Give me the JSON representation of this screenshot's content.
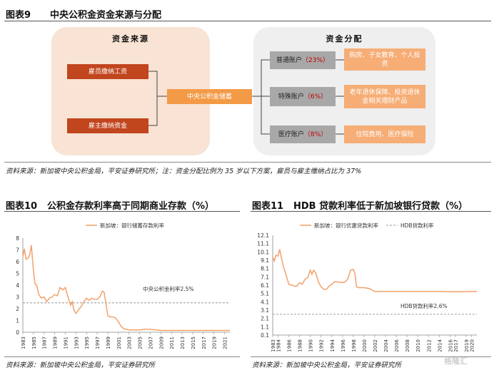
{
  "fig9": {
    "label": "图表9",
    "title": "中央公积金资金来源与分配",
    "sources_title": "资金来源",
    "sources": [
      "雇员缴纳工资",
      "雇主缴纳资金"
    ],
    "center": "中央公积金储蓄",
    "dist_title": "资金分配",
    "accounts": [
      {
        "name": "普通账户",
        "pct": "（23%）",
        "use": "购房、子女教育、个人投资"
      },
      {
        "name": "特殊账户",
        "pct": "（6%）",
        "use": "老年退休保障、投资退休金相关理财产品"
      },
      {
        "name": "医疗账户",
        "pct": "（8%）",
        "use": "住院费用、医疗保险"
      }
    ],
    "source_note": "资料来源：新加坡中央公积金局，平安证券研究所；注：资金分配比例为 35 岁以下方案，雇员与雇主缴纳占比为 37%"
  },
  "fig10": {
    "label": "图表10",
    "title": "公积金存款利率高于同期商业存款（%）",
    "source_note": "资料来源：新加坡中央公积金局，平安证券研究所"
  },
  "fig11": {
    "label": "图表11",
    "title": "HDB 贷款利率低于新加坡银行贷款（%）",
    "source_note": "资料来源：新加坡中央公积金局，平安证券研究所"
  },
  "watermark": "格隆汇",
  "colors": {
    "series": "#f3a16a",
    "reference": "#aaaaaa",
    "dark_orange": "#c1451d",
    "orange": "#f39a47"
  },
  "chart_data": [
    {
      "type": "line",
      "x_ticks": [
        "1983",
        "1985",
        "1987",
        "1989",
        "1991",
        "1993",
        "1995",
        "1997",
        "1999",
        "2001",
        "2003",
        "2005",
        "2007",
        "2009",
        "2011",
        "2013",
        "2015",
        "2017",
        "2019",
        "2021"
      ],
      "y_ticks": [
        "0",
        "1",
        "2",
        "3",
        "4",
        "5",
        "6",
        "7",
        "8"
      ],
      "ylim": [
        0,
        8
      ],
      "xlim": [
        1983,
        2022
      ],
      "series": [
        {
          "name": "新加坡：银行储蓄存款利率",
          "x": [
            1983,
            1983.3,
            1983.6,
            1984,
            1984.3,
            1984.6,
            1985,
            1985.3,
            1985.6,
            1986,
            1986.5,
            1987,
            1987.5,
            1988,
            1988.5,
            1989,
            1989.5,
            1990,
            1990.5,
            1991,
            1991.5,
            1992,
            1992.3,
            1992.6,
            1993,
            1993.5,
            1994,
            1994.5,
            1995,
            1995.5,
            1996,
            1996.5,
            1997,
            1997.5,
            1998,
            1998.3,
            1998.6,
            1999,
            1999.5,
            2000,
            2000.5,
            2001,
            2001.5,
            2002,
            2003,
            2004,
            2005,
            2006,
            2007,
            2008,
            2009,
            2010,
            2012,
            2014,
            2016,
            2018,
            2020,
            2021,
            2022
          ],
          "y": [
            6.4,
            7.1,
            6.2,
            6.3,
            6.6,
            7.4,
            5.2,
            4.1,
            4.0,
            3.2,
            2.9,
            3.0,
            2.6,
            2.9,
            3.0,
            3.2,
            3.1,
            3.8,
            3.6,
            3.8,
            3.0,
            2.3,
            2.6,
            1.9,
            1.6,
            1.9,
            2.2,
            2.6,
            2.9,
            2.7,
            2.9,
            2.8,
            2.8,
            3.0,
            3.5,
            3.4,
            2.6,
            1.4,
            1.3,
            1.3,
            1.2,
            0.9,
            0.5,
            0.3,
            0.2,
            0.2,
            0.2,
            0.25,
            0.25,
            0.2,
            0.15,
            0.15,
            0.15,
            0.15,
            0.15,
            0.15,
            0.15,
            0.15,
            0.15
          ]
        },
        {
          "name": "中央公积金利率2.5%",
          "constant": 2.5
        }
      ]
    },
    {
      "type": "line",
      "x_ticks": [
        "1983",
        "1984",
        "1986",
        "1988",
        "1990",
        "1992",
        "1994",
        "1996",
        "1998",
        "2000",
        "2002",
        "2004",
        "2006",
        "2008",
        "2010",
        "2012",
        "2014",
        "2016",
        "2017",
        "2019",
        "2020"
      ],
      "y_ticks": [
        "0.1",
        "1.1",
        "2.1",
        "3.1",
        "4.1",
        "5.1",
        "6.1",
        "7.1",
        "8.1",
        "9.1",
        "10.1",
        "11.1",
        "12.1"
      ],
      "ylim": [
        0.1,
        12.1
      ],
      "xlim": [
        1983,
        2021
      ],
      "series": [
        {
          "name": "新加坡：银行优惠贷款利率",
          "x": [
            1983,
            1983.3,
            1983.6,
            1984,
            1984.3,
            1984.6,
            1985,
            1985.5,
            1986,
            1986.5,
            1987,
            1987.5,
            1988,
            1988.5,
            1989,
            1989.5,
            1990,
            1990.3,
            1990.6,
            1991,
            1991.5,
            1992,
            1992.5,
            1993,
            1993.5,
            1994,
            1994.5,
            1995,
            1996,
            1996.5,
            1997,
            1997.5,
            1998,
            1998.3,
            1998.6,
            1999,
            2000,
            2001,
            2001.5,
            2002,
            2004,
            2006,
            2008,
            2010,
            2012,
            2014,
            2016,
            2018,
            2020,
            2021
          ],
          "y": [
            9.5,
            9.0,
            9.7,
            9.6,
            10.4,
            9.5,
            8.3,
            7.3,
            6.2,
            6.1,
            6.0,
            6.0,
            6.4,
            6.2,
            6.8,
            7.0,
            7.9,
            7.4,
            7.9,
            7.6,
            6.5,
            5.9,
            5.6,
            5.6,
            6.0,
            6.2,
            6.5,
            6.5,
            6.4,
            6.5,
            6.9,
            7.9,
            8.0,
            7.5,
            5.9,
            5.8,
            5.8,
            5.7,
            5.5,
            5.35,
            5.35,
            5.35,
            5.35,
            5.35,
            5.35,
            5.35,
            5.3,
            5.3,
            5.35,
            5.35
          ]
        },
        {
          "name": "HDB贷款利率",
          "constant": 2.6
        }
      ],
      "annotation": "HDB贷款利率2.6%"
    }
  ]
}
